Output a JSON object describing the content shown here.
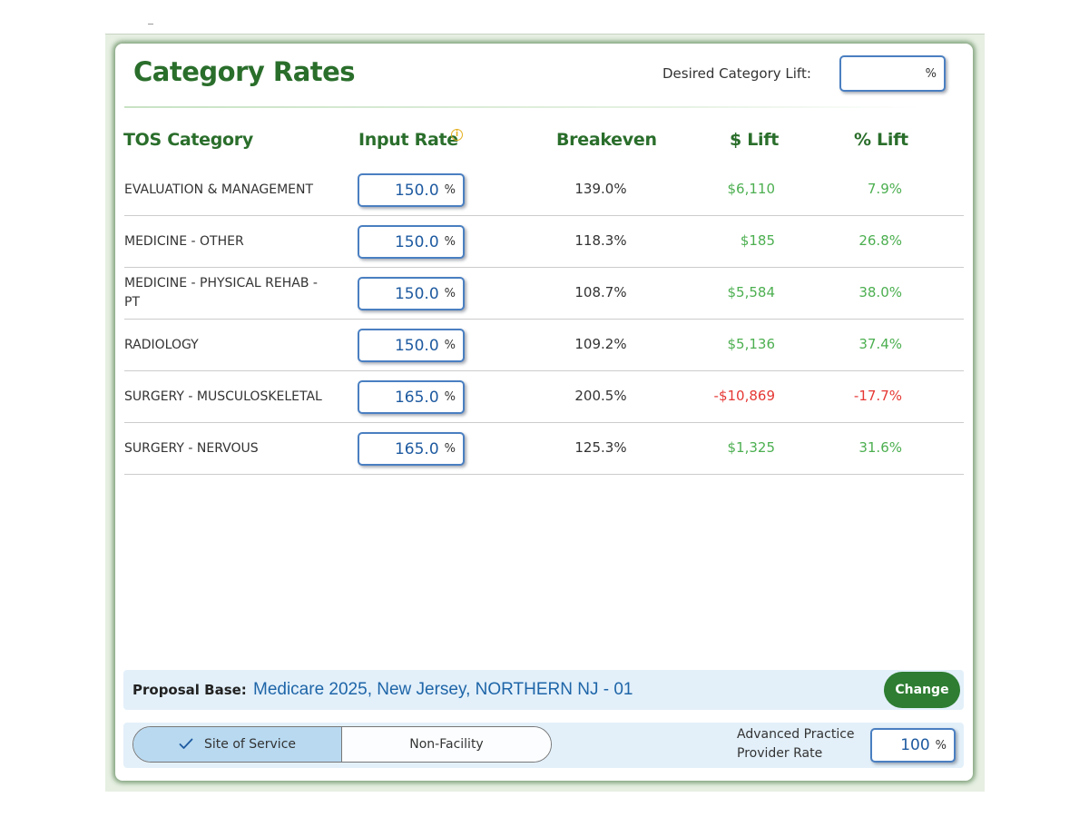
{
  "header": {
    "title": "Category Rates",
    "desired_lift_label": "Desired Category Lift:",
    "desired_lift_value": "",
    "percent_symbol": "%"
  },
  "columns": {
    "category": "TOS Category",
    "input_rate": "Input Rate",
    "breakeven": "Breakeven",
    "dollar_lift": "$ Lift",
    "percent_lift": "% Lift"
  },
  "rows": [
    {
      "category": "EVALUATION & MANAGEMENT",
      "input_rate": "150.0",
      "breakeven": "139.0%",
      "dollar_lift": "$6,110",
      "percent_lift": "7.9%",
      "negative": false
    },
    {
      "category": "MEDICINE - OTHER",
      "input_rate": "150.0",
      "breakeven": "118.3%",
      "dollar_lift": "$185",
      "percent_lift": "26.8%",
      "negative": false
    },
    {
      "category": "MEDICINE - PHYSICAL REHAB - PT",
      "input_rate": "150.0",
      "breakeven": "108.7%",
      "dollar_lift": "$5,584",
      "percent_lift": "38.0%",
      "negative": false
    },
    {
      "category": "RADIOLOGY",
      "input_rate": "150.0",
      "breakeven": "109.2%",
      "dollar_lift": "$5,136",
      "percent_lift": "37.4%",
      "negative": false
    },
    {
      "category": "SURGERY - MUSCULOSKELETAL",
      "input_rate": "165.0",
      "breakeven": "200.5%",
      "dollar_lift": "-$10,869",
      "percent_lift": "-17.7%",
      "negative": true
    },
    {
      "category": "SURGERY - NERVOUS",
      "input_rate": "165.0",
      "breakeven": "125.3%",
      "dollar_lift": "$1,325",
      "percent_lift": "31.6%",
      "negative": false
    }
  ],
  "proposal": {
    "label": "Proposal Base:",
    "value": "Medicare 2025, New Jersey, NORTHERN NJ - 01",
    "change_label": "Change"
  },
  "service": {
    "site_of_service_label": "Site of Service",
    "non_facility_label": "Non-Facility",
    "selected": "Site of Service",
    "app_label_line1": "Advanced Practice",
    "app_label_line2": "Provider Rate",
    "app_value": "100"
  },
  "colors": {
    "brand_green": "#2a6e2b",
    "positive": "#4caf50",
    "negative": "#e53935",
    "input_blue": "#1e5aa0",
    "panel_blue": "#e3f0fa"
  },
  "icons": {
    "info": "info-icon",
    "check": "check-icon"
  }
}
